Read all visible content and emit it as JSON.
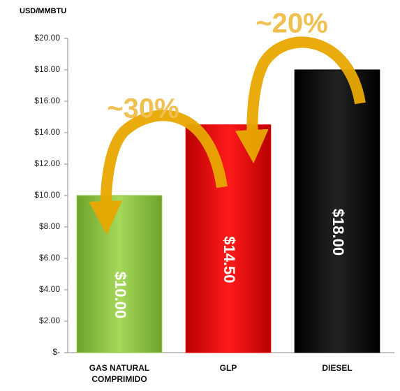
{
  "chart_data": {
    "type": "bar",
    "y_axis_label": "USD/MMBTU",
    "categories": [
      "GAS NATURAL COMPRIMIDO",
      "GLP",
      "DIESEL"
    ],
    "values": [
      10,
      14.5,
      18
    ],
    "value_labels": [
      "$10.00",
      "$14.50",
      "$18.00"
    ],
    "colors": [
      "#8cc63f",
      "#e60000",
      "#000000"
    ],
    "ylim": [
      0,
      20
    ],
    "yticks": [
      {
        "value": 0,
        "label": "$-"
      },
      {
        "value": 2,
        "label": "$2.00"
      },
      {
        "value": 4,
        "label": "$4.00"
      },
      {
        "value": 6,
        "label": "$6.00"
      },
      {
        "value": 8,
        "label": "$8.00"
      },
      {
        "value": 10,
        "label": "$10.00"
      },
      {
        "value": 12,
        "label": "$12.00"
      },
      {
        "value": 14,
        "label": "$14.00"
      },
      {
        "value": 16,
        "label": "$16.00"
      },
      {
        "value": 18,
        "label": "$18.00"
      },
      {
        "value": 20,
        "label": "$20.00"
      }
    ],
    "annotations": [
      "~30%",
      "~20%"
    ]
  }
}
